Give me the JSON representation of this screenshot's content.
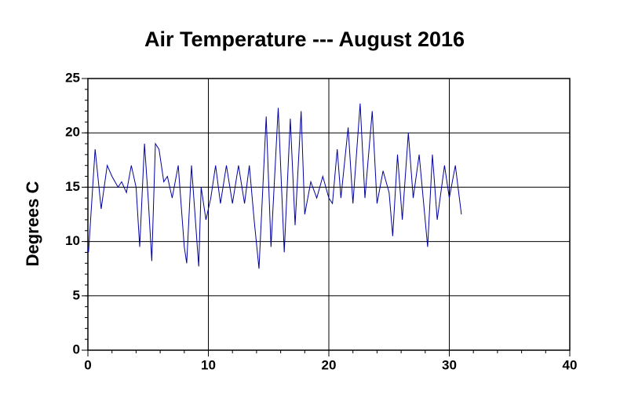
{
  "chart_data": {
    "type": "line",
    "title": "Air Temperature --- August 2016",
    "y_label": "Degrees C",
    "x": [
      0,
      0.05,
      0.6,
      1.1,
      1.6,
      2.0,
      2.5,
      2.8,
      3.2,
      3.6,
      4.0,
      4.3,
      4.7,
      5.0,
      5.3,
      5.6,
      5.9,
      6.3,
      6.6,
      7.0,
      7.5,
      8.0,
      8.2,
      8.6,
      9.2,
      9.4,
      9.8,
      10.2,
      10.6,
      11.0,
      11.5,
      12.0,
      12.5,
      13.0,
      13.4,
      13.8,
      14.2,
      14.8,
      15.2,
      15.8,
      16.3,
      16.8,
      17.2,
      17.7,
      18.0,
      18.5,
      19.0,
      19.5,
      20.0,
      20.3,
      20.7,
      21.0,
      21.6,
      22.0,
      22.6,
      23.0,
      23.6,
      24.0,
      24.5,
      25.0,
      25.3,
      25.7,
      26.1,
      26.6,
      27.0,
      27.5,
      28.2,
      28.6,
      29.0,
      29.6,
      30.0,
      30.5,
      31.0
    ],
    "series": [
      {
        "name": "Air Temperature",
        "color": "#0000a0",
        "values": [
          9.5,
          9,
          18.5,
          13,
          17,
          16,
          15,
          15.5,
          14.5,
          17,
          15,
          9.5,
          19,
          14,
          8.2,
          19,
          18.5,
          15.5,
          16,
          14,
          17,
          9.5,
          8,
          17,
          7.7,
          15,
          12,
          14,
          17,
          13.5,
          17,
          13.5,
          17,
          13.5,
          17,
          12,
          7.5,
          21.5,
          9.5,
          22.3,
          9,
          21.3,
          11.5,
          22,
          12.5,
          15.5,
          14,
          16,
          14,
          13.5,
          18.5,
          14,
          20.5,
          13.5,
          22.7,
          14,
          22,
          13.5,
          16.5,
          14.5,
          10.5,
          18,
          12,
          20,
          14,
          18,
          9.5,
          18,
          12,
          17,
          14,
          17,
          12.5
        ]
      }
    ],
    "xlim": [
      0,
      40
    ],
    "xticks": [
      0,
      10,
      20,
      30,
      40
    ],
    "ylim": [
      0,
      25
    ],
    "yticks": [
      0,
      5,
      10,
      15,
      20,
      25
    ],
    "grid": true
  }
}
